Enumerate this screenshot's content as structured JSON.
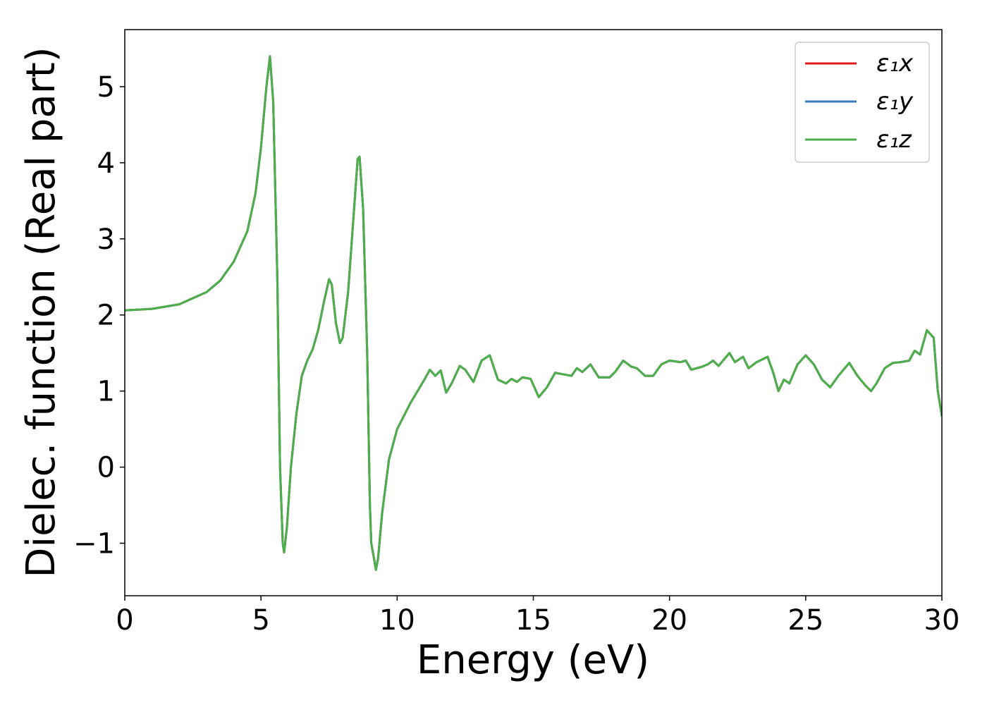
{
  "chart_data": {
    "type": "line",
    "xlabel": "Energy (eV)",
    "ylabel": "Dielec. function (Real part)",
    "x": [
      0,
      1,
      2,
      3,
      3.5,
      4,
      4.5,
      4.8,
      5.0,
      5.2,
      5.33,
      5.45,
      5.6,
      5.7,
      5.8,
      5.85,
      5.95,
      6.1,
      6.3,
      6.5,
      6.7,
      6.9,
      7.1,
      7.3,
      7.5,
      7.6,
      7.75,
      7.9,
      8.0,
      8.2,
      8.4,
      8.55,
      8.62,
      8.75,
      8.9,
      9.0,
      9.05,
      9.15,
      9.22,
      9.3,
      9.45,
      9.7,
      10.0,
      10.5,
      11.0,
      11.2,
      11.4,
      11.6,
      11.8,
      12.0,
      12.3,
      12.5,
      12.8,
      13.1,
      13.4,
      13.7,
      14.0,
      14.2,
      14.4,
      14.6,
      14.9,
      15.2,
      15.5,
      15.8,
      16.1,
      16.4,
      16.6,
      16.8,
      17.1,
      17.4,
      17.8,
      18.0,
      18.3,
      18.6,
      18.8,
      19.1,
      19.4,
      19.7,
      20.0,
      20.4,
      20.6,
      20.8,
      21.2,
      21.4,
      21.6,
      21.8,
      22.2,
      22.4,
      22.7,
      22.9,
      23.2,
      23.6,
      23.8,
      24.0,
      24.2,
      24.4,
      24.7,
      25.0,
      25.3,
      25.6,
      25.9,
      26.2,
      26.6,
      26.9,
      27.2,
      27.4,
      27.6,
      27.9,
      28.2,
      28.5,
      28.8,
      29.0,
      29.2,
      29.45,
      29.7,
      29.85,
      30.0
    ],
    "series": [
      {
        "name": "ε₁x",
        "color": "#e41a1c",
        "values": [
          2.06,
          2.08,
          2.14,
          2.3,
          2.45,
          2.7,
          3.1,
          3.6,
          4.2,
          5.0,
          5.4,
          4.8,
          2.5,
          0,
          -1.0,
          -1.12,
          -0.8,
          0,
          0.7,
          1.2,
          1.4,
          1.55,
          1.8,
          2.15,
          2.47,
          2.4,
          1.9,
          1.63,
          1.7,
          2.3,
          3.3,
          4.05,
          4.08,
          3.4,
          1.5,
          -0.5,
          -1.0,
          -1.2,
          -1.35,
          -1.2,
          -0.6,
          0.1,
          0.5,
          0.85,
          1.15,
          1.28,
          1.2,
          1.27,
          0.98,
          1.1,
          1.33,
          1.28,
          1.12,
          1.4,
          1.47,
          1.15,
          1.1,
          1.16,
          1.12,
          1.18,
          1.16,
          0.92,
          1.05,
          1.24,
          1.22,
          1.2,
          1.3,
          1.25,
          1.35,
          1.18,
          1.18,
          1.25,
          1.4,
          1.32,
          1.3,
          1.2,
          1.2,
          1.35,
          1.4,
          1.38,
          1.4,
          1.28,
          1.32,
          1.35,
          1.4,
          1.33,
          1.5,
          1.38,
          1.45,
          1.3,
          1.38,
          1.45,
          1.25,
          1.0,
          1.15,
          1.1,
          1.35,
          1.47,
          1.35,
          1.15,
          1.05,
          1.2,
          1.37,
          1.2,
          1.07,
          1.0,
          1.1,
          1.3,
          1.37,
          1.38,
          1.4,
          1.53,
          1.48,
          1.8,
          1.7,
          1.0,
          0.67
        ]
      },
      {
        "name": "ε₁y",
        "color": "#377eb8",
        "values": [
          2.06,
          2.08,
          2.14,
          2.3,
          2.45,
          2.7,
          3.1,
          3.6,
          4.2,
          5.0,
          5.4,
          4.8,
          2.5,
          0,
          -1.0,
          -1.12,
          -0.8,
          0,
          0.7,
          1.2,
          1.4,
          1.55,
          1.8,
          2.15,
          2.47,
          2.4,
          1.9,
          1.63,
          1.7,
          2.3,
          3.3,
          4.05,
          4.08,
          3.4,
          1.5,
          -0.5,
          -1.0,
          -1.2,
          -1.35,
          -1.2,
          -0.6,
          0.1,
          0.5,
          0.85,
          1.15,
          1.28,
          1.2,
          1.27,
          0.98,
          1.1,
          1.33,
          1.28,
          1.12,
          1.4,
          1.47,
          1.15,
          1.1,
          1.16,
          1.12,
          1.18,
          1.16,
          0.92,
          1.05,
          1.24,
          1.22,
          1.2,
          1.3,
          1.25,
          1.35,
          1.18,
          1.18,
          1.25,
          1.4,
          1.32,
          1.3,
          1.2,
          1.2,
          1.35,
          1.4,
          1.38,
          1.4,
          1.28,
          1.32,
          1.35,
          1.4,
          1.33,
          1.5,
          1.38,
          1.45,
          1.3,
          1.38,
          1.45,
          1.25,
          1.0,
          1.15,
          1.1,
          1.35,
          1.47,
          1.35,
          1.15,
          1.05,
          1.2,
          1.37,
          1.2,
          1.07,
          1.0,
          1.1,
          1.3,
          1.37,
          1.38,
          1.4,
          1.53,
          1.48,
          1.8,
          1.7,
          1.0,
          0.67
        ]
      },
      {
        "name": "ε₁z",
        "color": "#4daf4a",
        "values": [
          2.06,
          2.08,
          2.14,
          2.3,
          2.45,
          2.7,
          3.1,
          3.6,
          4.2,
          5.0,
          5.4,
          4.8,
          2.5,
          0,
          -1.0,
          -1.12,
          -0.8,
          0,
          0.7,
          1.2,
          1.4,
          1.55,
          1.8,
          2.15,
          2.47,
          2.4,
          1.9,
          1.63,
          1.7,
          2.3,
          3.3,
          4.05,
          4.08,
          3.4,
          1.5,
          -0.5,
          -1.0,
          -1.2,
          -1.35,
          -1.2,
          -0.6,
          0.1,
          0.5,
          0.85,
          1.15,
          1.28,
          1.2,
          1.27,
          0.98,
          1.1,
          1.33,
          1.28,
          1.12,
          1.4,
          1.47,
          1.15,
          1.1,
          1.16,
          1.12,
          1.18,
          1.16,
          0.92,
          1.05,
          1.24,
          1.22,
          1.2,
          1.3,
          1.25,
          1.35,
          1.18,
          1.18,
          1.25,
          1.4,
          1.32,
          1.3,
          1.2,
          1.2,
          1.35,
          1.4,
          1.38,
          1.4,
          1.28,
          1.32,
          1.35,
          1.4,
          1.33,
          1.5,
          1.38,
          1.45,
          1.3,
          1.38,
          1.45,
          1.25,
          1.0,
          1.15,
          1.1,
          1.35,
          1.47,
          1.35,
          1.15,
          1.05,
          1.2,
          1.37,
          1.2,
          1.07,
          1.0,
          1.1,
          1.3,
          1.37,
          1.38,
          1.4,
          1.53,
          1.48,
          1.8,
          1.7,
          1.0,
          0.67
        ]
      }
    ],
    "xlim": [
      0,
      30
    ],
    "xticks": [
      0,
      5,
      10,
      15,
      20,
      25,
      30
    ],
    "ylim": [
      -1.69,
      5.75
    ],
    "yticks": [
      {
        "value": -1,
        "label": "−1"
      },
      0,
      1,
      2,
      3,
      4,
      5
    ],
    "legend": "upper right"
  }
}
